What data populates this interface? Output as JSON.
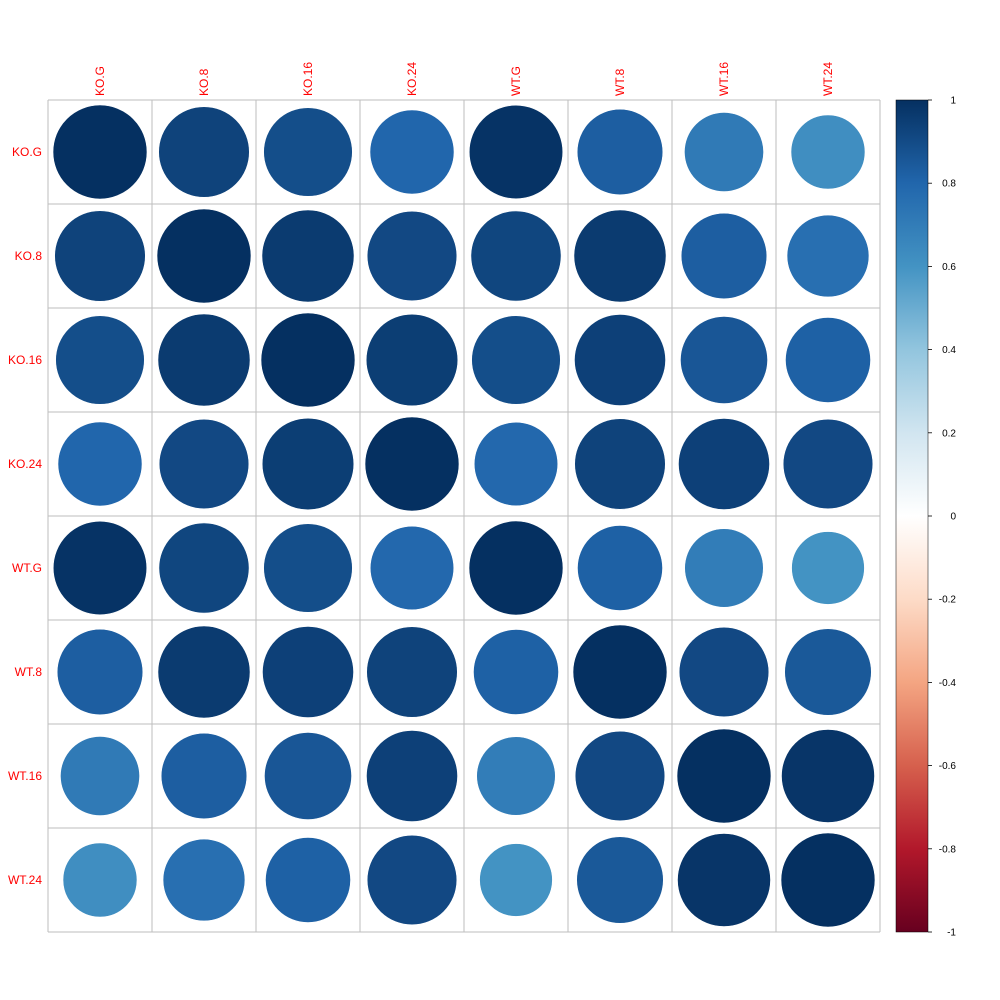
{
  "chart_data": {
    "type": "heatmap",
    "subtype": "correlation-circles",
    "labels": [
      "KO.G",
      "KO.8",
      "KO.16",
      "KO.24",
      "WT.G",
      "WT.8",
      "WT.16",
      "WT.24"
    ],
    "matrix": [
      [
        1.0,
        0.93,
        0.89,
        0.8,
        0.99,
        0.83,
        0.71,
        0.62
      ],
      [
        0.93,
        1.0,
        0.96,
        0.91,
        0.92,
        0.96,
        0.83,
        0.76
      ],
      [
        0.89,
        0.96,
        1.0,
        0.95,
        0.89,
        0.94,
        0.86,
        0.82
      ],
      [
        0.8,
        0.91,
        0.95,
        1.0,
        0.79,
        0.93,
        0.94,
        0.91
      ],
      [
        0.99,
        0.92,
        0.89,
        0.79,
        1.0,
        0.82,
        0.7,
        0.6
      ],
      [
        0.83,
        0.96,
        0.94,
        0.93,
        0.82,
        1.0,
        0.91,
        0.85
      ],
      [
        0.71,
        0.83,
        0.86,
        0.94,
        0.7,
        0.91,
        1.0,
        0.98
      ],
      [
        0.62,
        0.76,
        0.82,
        0.91,
        0.6,
        0.85,
        0.98,
        1.0
      ]
    ],
    "colorbar": {
      "min": -1,
      "max": 1,
      "ticks": [
        "1",
        "0.8",
        "0.6",
        "0.4",
        "0.2",
        "0",
        "-0.2",
        "-0.4",
        "-0.6",
        "-0.8",
        "-1"
      ],
      "colors": [
        "#67001F",
        "#B2182B",
        "#D6604D",
        "#F4A582",
        "#FDDBC7",
        "#FFFFFF",
        "#D1E5F0",
        "#92C5DE",
        "#4393C3",
        "#2166AC",
        "#053061"
      ]
    },
    "grid": true,
    "legend": "right",
    "label_color": "#FF0000"
  }
}
